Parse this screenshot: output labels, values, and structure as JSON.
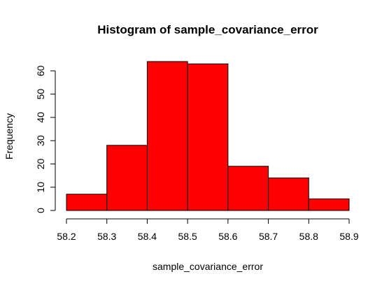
{
  "chart_data": {
    "type": "bar",
    "title": "Histogram of sample_covariance_error",
    "xlabel": "sample_covariance_error",
    "ylabel": "Frequency",
    "bins": [
      {
        "start": 58.2,
        "end": 58.3,
        "count": 7
      },
      {
        "start": 58.3,
        "end": 58.4,
        "count": 28
      },
      {
        "start": 58.4,
        "end": 58.5,
        "count": 64
      },
      {
        "start": 58.5,
        "end": 58.6,
        "count": 63
      },
      {
        "start": 58.6,
        "end": 58.7,
        "count": 19
      },
      {
        "start": 58.7,
        "end": 58.8,
        "count": 14
      },
      {
        "start": 58.8,
        "end": 58.9,
        "count": 5
      }
    ],
    "xlim": [
      58.2,
      58.9
    ],
    "ylim": [
      0,
      64
    ],
    "x_ticks": [
      "58.2",
      "58.3",
      "58.4",
      "58.5",
      "58.6",
      "58.7",
      "58.8",
      "58.9"
    ],
    "y_ticks": [
      "0",
      "10",
      "20",
      "30",
      "40",
      "50",
      "60"
    ],
    "bar_color": "#ff0000",
    "grid": false
  }
}
